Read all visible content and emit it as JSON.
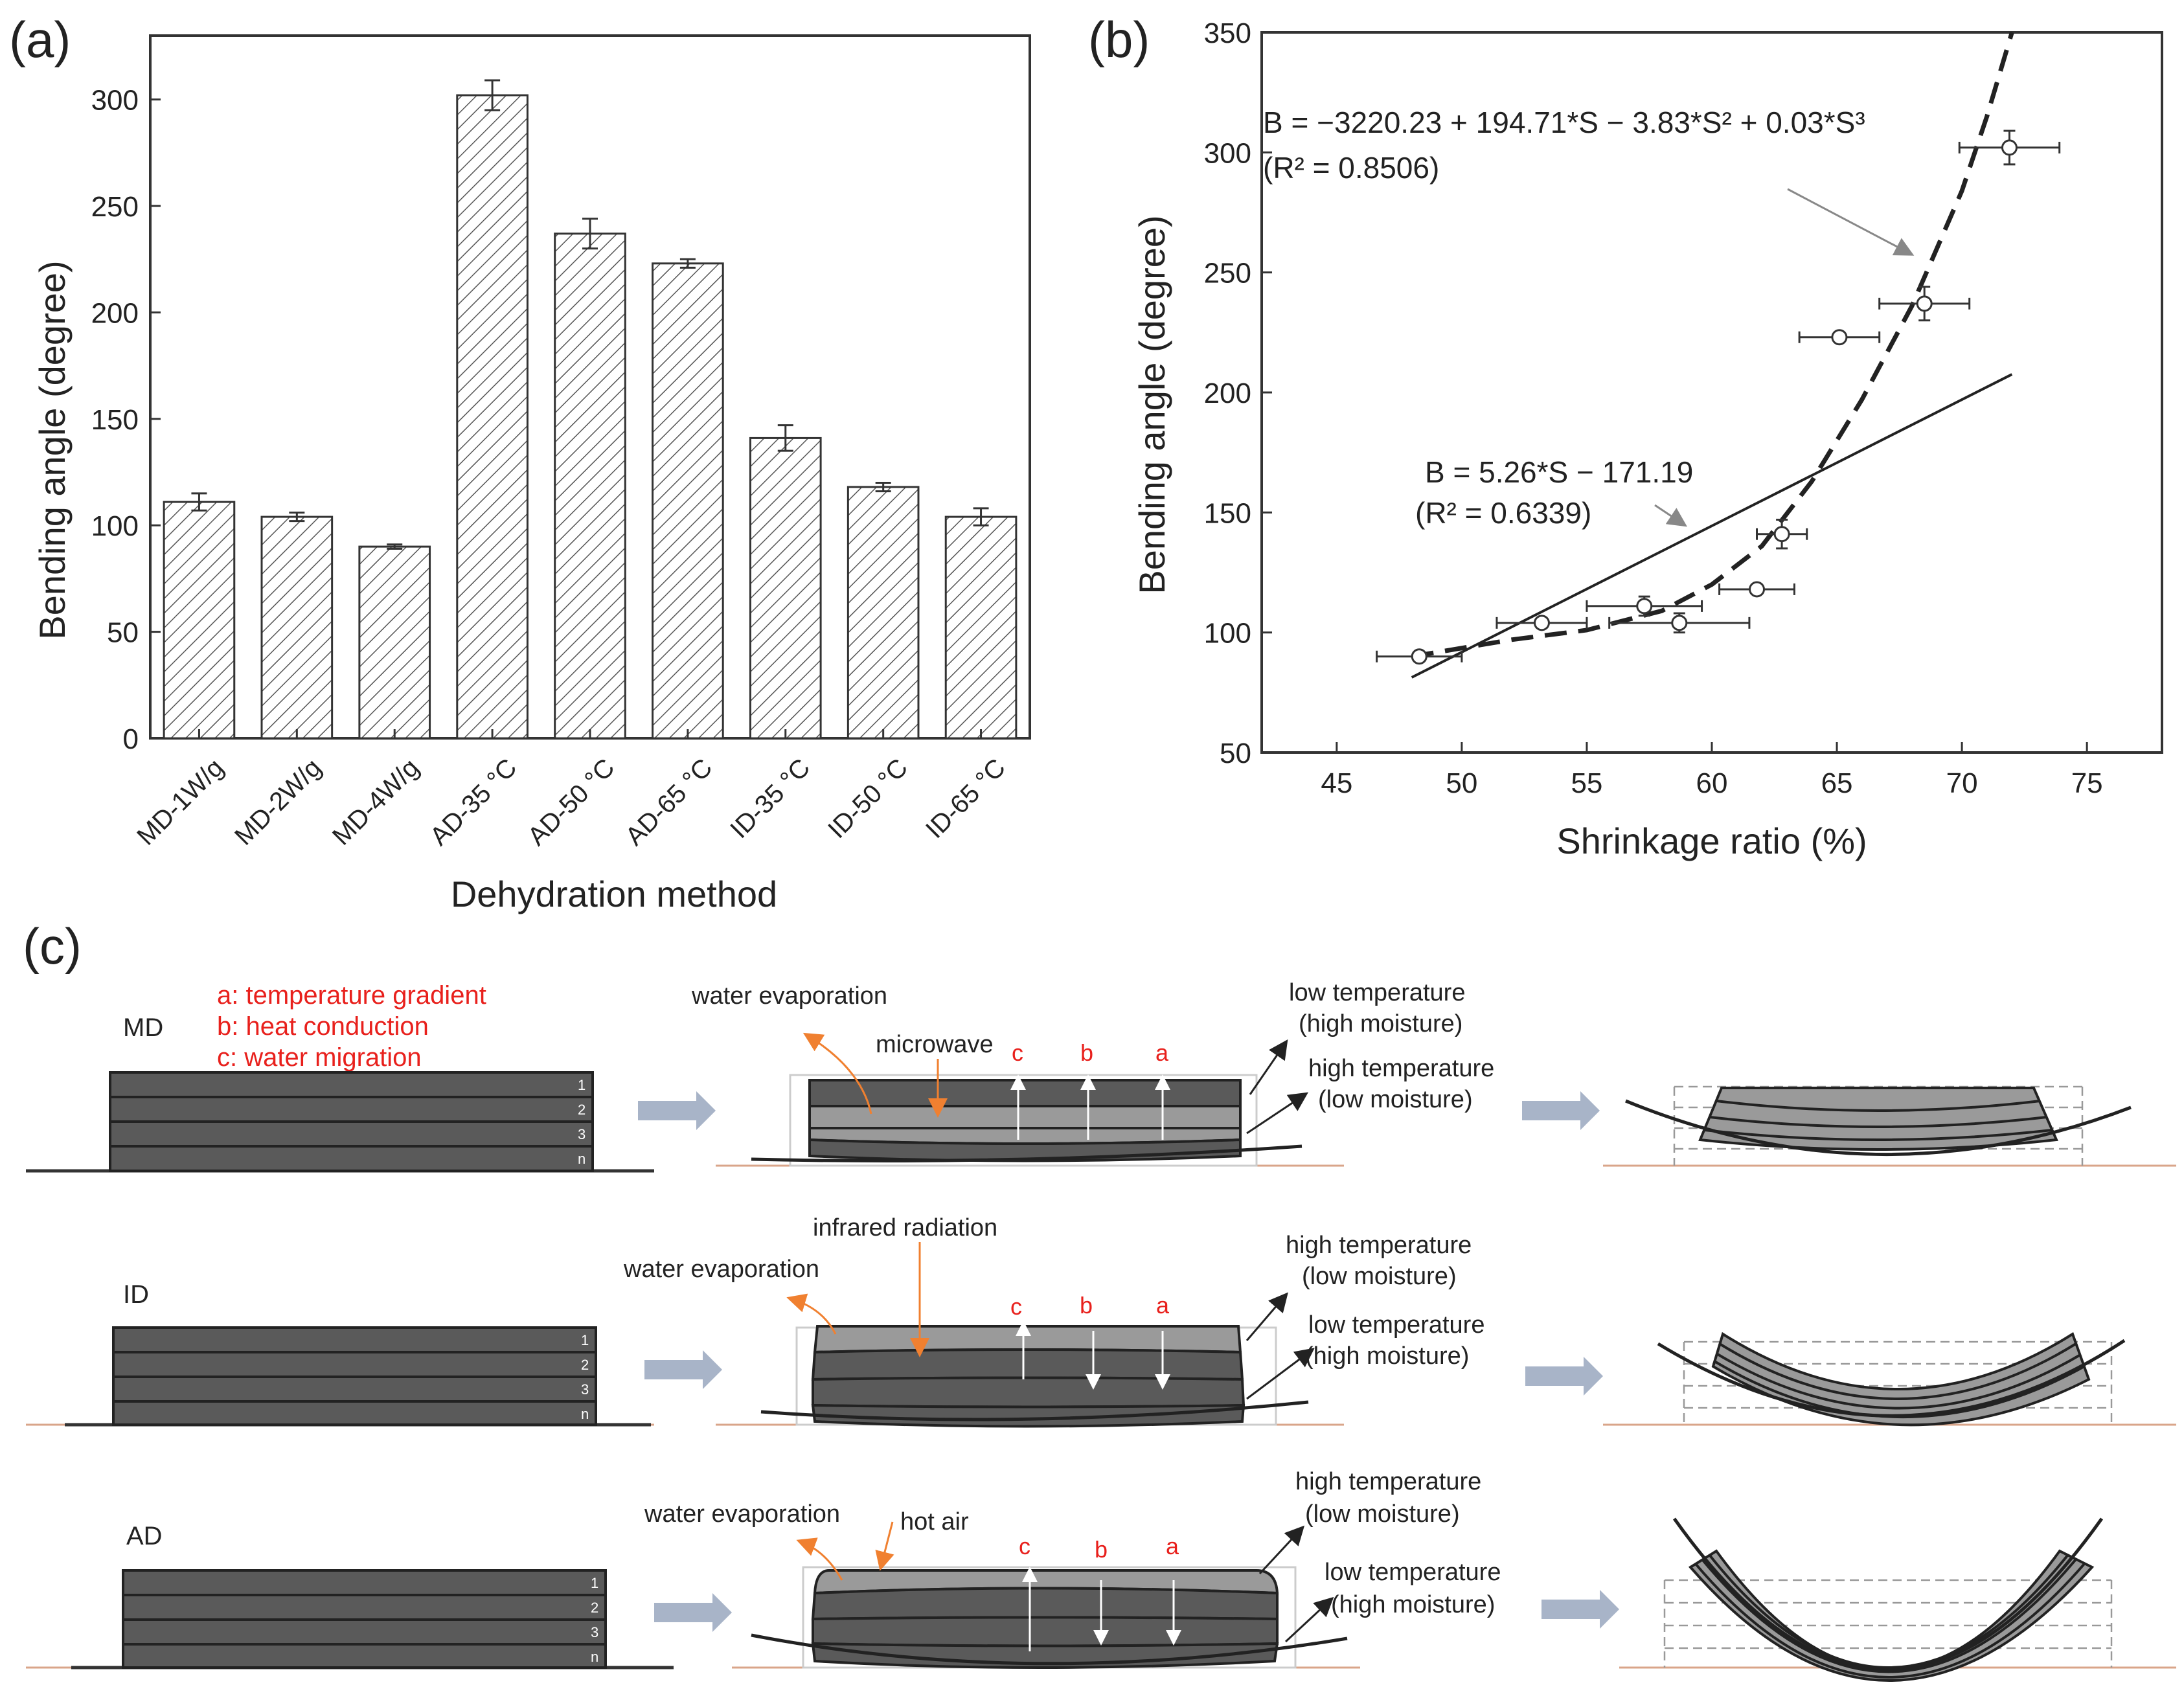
{
  "panel_labels": {
    "a": "(a)",
    "b": "(b)",
    "c": "(c)"
  },
  "chart_data": [
    {
      "type": "bar",
      "panel": "(a)",
      "title": "",
      "xlabel": "Dehydration method",
      "ylabel": "Bending angle (degree)",
      "categories": [
        "MD-1W/g",
        "MD-2W/g",
        "MD-4W/g",
        "AD-35 °C",
        "AD-50 °C",
        "AD-65 °C",
        "ID-35 °C",
        "ID-50 °C",
        "ID-65 °C"
      ],
      "values": [
        111,
        104,
        90,
        302,
        237,
        223,
        141,
        118,
        104
      ],
      "errors": [
        4,
        2,
        1,
        7,
        7,
        2,
        6,
        2,
        4
      ],
      "ylim": [
        0,
        330
      ],
      "yticks": [
        0,
        50,
        100,
        150,
        200,
        250,
        300
      ],
      "ytick_labels": [
        "0",
        "50",
        "100",
        "150",
        "200",
        "250",
        "300"
      ]
    },
    {
      "type": "scatter",
      "panel": "(b)",
      "title": "",
      "xlabel": "Shrinkage ratio (%)",
      "ylabel": "Bending angle (degree)",
      "xlim": [
        42,
        78
      ],
      "ylim": [
        50,
        350
      ],
      "xticks": [
        45,
        50,
        55,
        60,
        65,
        70,
        75
      ],
      "xtick_labels": [
        "45",
        "50",
        "55",
        "60",
        "65",
        "70",
        "75"
      ],
      "yticks": [
        50,
        100,
        150,
        200,
        250,
        300,
        350
      ],
      "ytick_labels": [
        "50",
        "100",
        "150",
        "200",
        "250",
        "300",
        "350"
      ],
      "points": [
        {
          "x": 48.3,
          "y": 90,
          "xerr": 1.7,
          "yerr": 1
        },
        {
          "x": 53.2,
          "y": 104,
          "xerr": 1.8,
          "yerr": 2
        },
        {
          "x": 57.3,
          "y": 111,
          "xerr": 2.3,
          "yerr": 4
        },
        {
          "x": 58.7,
          "y": 104,
          "xerr": 2.8,
          "yerr": 4
        },
        {
          "x": 61.8,
          "y": 118,
          "xerr": 1.5,
          "yerr": 2
        },
        {
          "x": 62.8,
          "y": 141,
          "xerr": 1.0,
          "yerr": 6
        },
        {
          "x": 65.1,
          "y": 223,
          "xerr": 1.6,
          "yerr": 2
        },
        {
          "x": 68.5,
          "y": 237,
          "xerr": 1.8,
          "yerr": 7
        },
        {
          "x": 71.9,
          "y": 302,
          "xerr": 2.0,
          "yerr": 7
        }
      ],
      "linear_fit": {
        "slope": 5.26,
        "intercept": -171.19,
        "x_range": [
          48,
          72
        ]
      },
      "cubic_fit": {
        "x_range": [
          48,
          72
        ],
        "curve": [
          [
            48,
            90
          ],
          [
            52,
            97
          ],
          [
            55,
            101
          ],
          [
            58,
            109
          ],
          [
            60,
            120
          ],
          [
            62,
            136
          ],
          [
            64,
            163
          ],
          [
            66,
            197
          ],
          [
            68,
            236
          ],
          [
            70,
            284
          ],
          [
            71,
            315
          ],
          [
            72,
            350
          ]
        ]
      },
      "annotations": {
        "cubic_eq": "B =  −3220.23 + 194.71*S − 3.83*S² + 0.03*S³",
        "cubic_r2": "(R² = 0.8506)",
        "linear_eq": "B = 5.26*S − 171.19",
        "linear_r2": "(R² = 0.6339)"
      }
    }
  ],
  "diagram": {
    "legend": [
      "a: temperature gradient",
      "b: heat conduction",
      "c: water migration"
    ],
    "layer_numbers": [
      "1",
      "2",
      "3",
      "n"
    ],
    "arrow_letters": [
      "c",
      "b",
      "a"
    ],
    "rows": [
      {
        "method": "MD",
        "source": "microwave",
        "evaporation": "water evaporation",
        "top_label": [
          "low temperature",
          "(high moisture)"
        ],
        "bottom_label": [
          "high temperature",
          "(low moisture)"
        ]
      },
      {
        "method": "ID",
        "source": "infrared radiation",
        "evaporation": "water evaporation",
        "top_label": [
          "high temperature",
          "(low moisture)"
        ],
        "bottom_label": [
          "low temperature",
          "(high moisture)"
        ]
      },
      {
        "method": "AD",
        "source": "hot air",
        "evaporation": "water evaporation",
        "top_label": [
          "high temperature",
          "(low moisture)"
        ],
        "bottom_label": [
          "low temperature",
          "(high moisture)"
        ]
      }
    ]
  }
}
